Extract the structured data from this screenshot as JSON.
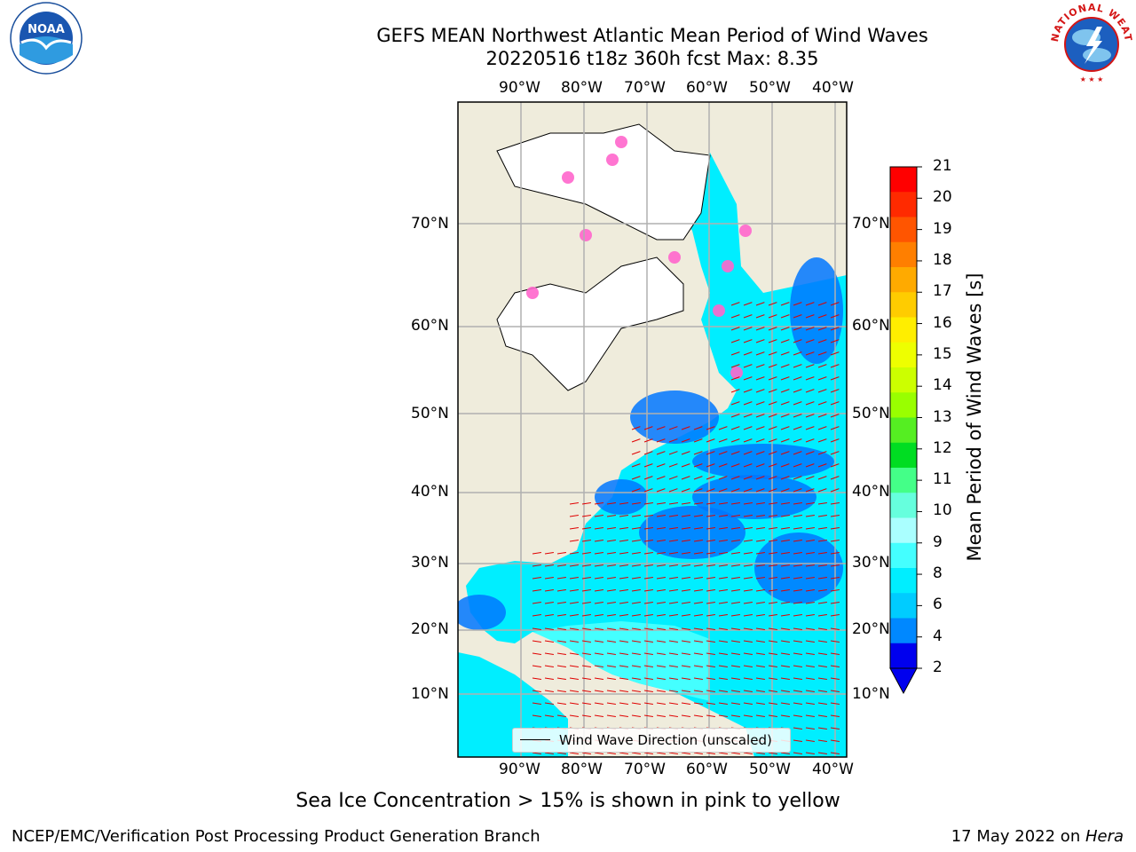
{
  "header": {
    "title_line1": "GEFS MEAN Northwest Atlantic Mean Period of Wind Waves",
    "title_line2": "20220516 t18z 360h fcst   Max: 8.35"
  },
  "logos": {
    "noaa_text": "NOAA",
    "nws_text": "NATIONAL WEATHER SERVICE"
  },
  "axes": {
    "lon_labels": [
      "90°W",
      "80°W",
      "70°W",
      "60°W",
      "50°W",
      "40°W"
    ],
    "lat_labels": [
      "70°N",
      "60°N",
      "50°N",
      "40°N",
      "30°N",
      "20°N",
      "10°N"
    ]
  },
  "legend": {
    "label": "Wind Wave Direction (unscaled)"
  },
  "colorbar": {
    "label": "Mean Period of Wind Waves [s]",
    "ticks": [
      "21",
      "20",
      "19",
      "18",
      "17",
      "16",
      "15",
      "14",
      "13",
      "12",
      "11",
      "10",
      "9",
      "8",
      "6",
      "4",
      "2"
    ],
    "colors": [
      "#ff0000",
      "#ff2a00",
      "#ff5500",
      "#ff7f00",
      "#ffaa00",
      "#ffcc00",
      "#ffee00",
      "#eeff00",
      "#ccff00",
      "#99ff00",
      "#55ee22",
      "#00dd22",
      "#44ff88",
      "#66ffdd",
      "#aaffff",
      "#44ffff",
      "#00eeff",
      "#00ccff",
      "#0088ff",
      "#0000ee"
    ],
    "extend_color": "#0000ee"
  },
  "chart_data": {
    "type": "heatmap",
    "variable": "Mean Period of Wind Waves",
    "units": "s",
    "max": 8.35,
    "levels": [
      2,
      3,
      4,
      5,
      6,
      7,
      8,
      9,
      10,
      11,
      12,
      13,
      14,
      15,
      16,
      17,
      18,
      19,
      20,
      21
    ],
    "lon_ticks": [
      -90,
      -80,
      -70,
      -60,
      -50,
      -40
    ],
    "lat_ticks": [
      70,
      60,
      50,
      40,
      30,
      20,
      10
    ]
  },
  "notes": {
    "sea_ice": "Sea Ice Concentration > 15% is shown in pink to yellow"
  },
  "footer": {
    "left": "NCEP/EMC/Verification Post Processing Product Generation Branch",
    "right_date": "17 May 2022 on ",
    "right_host": "Hera"
  }
}
